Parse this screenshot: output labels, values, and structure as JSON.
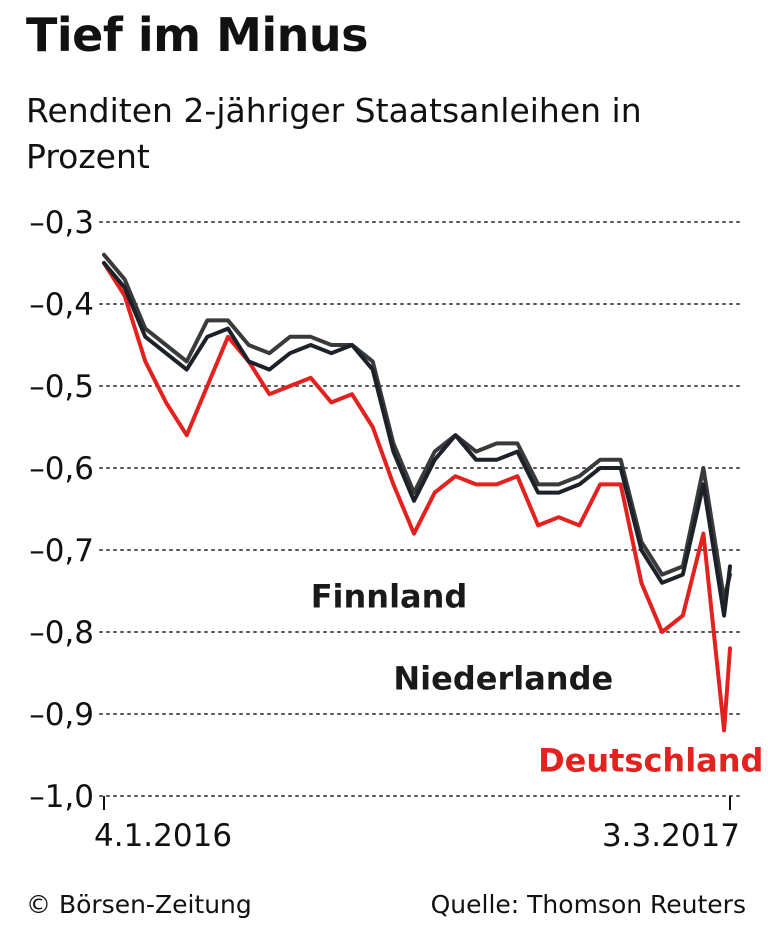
{
  "header": {
    "title": "Tief im Minus",
    "subtitle": "Renditen 2-jähriger Staatsanleihen in Prozent"
  },
  "footer": {
    "credit": "© Börsen-Zeitung",
    "source": "Quelle: Thomson Reuters"
  },
  "colors": {
    "deutschland": "#e3211f",
    "niederlande": "#1d2129",
    "finnland": "#3a3a3a",
    "label_deutschland": "#e3211f",
    "label_dark": "#1a1a1a"
  },
  "chart_data": {
    "type": "line",
    "title": "Tief im Minus",
    "subtitle": "Renditen 2-jähriger Staatsanleihen in Prozent",
    "xlabel": "",
    "ylabel": "",
    "x_tick_labels": [
      "4.1.2016",
      "3.3.2017"
    ],
    "x_range": [
      "2016-01-04",
      "2017-03-03"
    ],
    "ylim": [
      -1.0,
      -0.3
    ],
    "y_ticks": [
      -0.3,
      -0.4,
      -0.5,
      -0.6,
      -0.7,
      -0.8,
      -0.9,
      -1.0
    ],
    "y_tick_labels": [
      "–0,3",
      "–0,4",
      "–0,5",
      "–0,6",
      "–0,7",
      "–0,8",
      "–0,9",
      "–1,0"
    ],
    "grid": "horizontal dotted",
    "legend": "inline labels",
    "x": [
      "2016-01-04",
      "2016-01-18",
      "2016-02-01",
      "2016-02-15",
      "2016-02-29",
      "2016-03-14",
      "2016-03-28",
      "2016-04-11",
      "2016-04-25",
      "2016-05-09",
      "2016-05-23",
      "2016-06-06",
      "2016-06-20",
      "2016-07-04",
      "2016-07-18",
      "2016-08-01",
      "2016-08-15",
      "2016-08-29",
      "2016-09-12",
      "2016-09-26",
      "2016-10-10",
      "2016-10-24",
      "2016-11-07",
      "2016-11-21",
      "2016-12-05",
      "2016-12-19",
      "2017-01-02",
      "2017-01-16",
      "2017-01-30",
      "2017-02-13",
      "2017-02-27",
      "2017-03-03"
    ],
    "series": [
      {
        "name": "Deutschland",
        "values": [
          -0.35,
          -0.39,
          -0.47,
          -0.52,
          -0.56,
          -0.5,
          -0.44,
          -0.47,
          -0.51,
          -0.5,
          -0.49,
          -0.52,
          -0.51,
          -0.55,
          -0.62,
          -0.68,
          -0.63,
          -0.61,
          -0.62,
          -0.62,
          -0.61,
          -0.67,
          -0.66,
          -0.67,
          -0.62,
          -0.62,
          -0.74,
          -0.8,
          -0.78,
          -0.68,
          -0.92,
          -0.82
        ]
      },
      {
        "name": "Niederlande",
        "values": [
          -0.35,
          -0.38,
          -0.44,
          -0.46,
          -0.48,
          -0.44,
          -0.43,
          -0.47,
          -0.48,
          -0.46,
          -0.45,
          -0.46,
          -0.45,
          -0.48,
          -0.58,
          -0.64,
          -0.59,
          -0.56,
          -0.59,
          -0.59,
          -0.58,
          -0.63,
          -0.63,
          -0.62,
          -0.6,
          -0.6,
          -0.7,
          -0.74,
          -0.73,
          -0.62,
          -0.78,
          -0.72
        ]
      },
      {
        "name": "Finnland",
        "values": [
          -0.34,
          -0.37,
          -0.43,
          -0.45,
          -0.47,
          -0.42,
          -0.42,
          -0.45,
          -0.46,
          -0.44,
          -0.44,
          -0.45,
          -0.45,
          -0.47,
          -0.57,
          -0.63,
          -0.58,
          -0.56,
          -0.58,
          -0.57,
          -0.57,
          -0.62,
          -0.62,
          -0.61,
          -0.59,
          -0.59,
          -0.69,
          -0.73,
          -0.72,
          -0.6,
          -0.76,
          -0.73
        ]
      }
    ],
    "series_labels": [
      {
        "name": "Finnland",
        "text": "Finnland",
        "anchor_x": "2016-05-23",
        "anchor_y": -0.77
      },
      {
        "name": "Niederlande",
        "text": "Niederlande",
        "anchor_x": "2016-07-18",
        "anchor_y": -0.87
      },
      {
        "name": "Deutschland",
        "text": "Deutschland",
        "anchor_x": "2016-10-24",
        "anchor_y": -0.97
      }
    ]
  }
}
